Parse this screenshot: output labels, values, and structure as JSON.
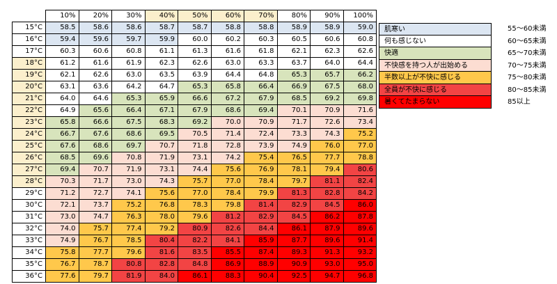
{
  "colors": {
    "background": "#ffffff",
    "grid_line": "#000000",
    "header_plain": "#ffffff",
    "header_highlight": "#fbefcc"
  },
  "chart_data": {
    "type": "table",
    "title": "",
    "column_labels": [
      "10%",
      "20%",
      "30%",
      "40%",
      "50%",
      "60%",
      "70%",
      "80%",
      "90%",
      "100%"
    ],
    "highlighted_columns": [
      "40%",
      "50%",
      "60%",
      "70%"
    ],
    "row_labels": [
      "15°C",
      "16°C",
      "17°C",
      "18°C",
      "19°C",
      "20°C",
      "21°C",
      "22°C",
      "23°C",
      "24°C",
      "25°C",
      "26°C",
      "27°C",
      "28°C",
      "29°C",
      "30°C",
      "31°C",
      "32°C",
      "33°C",
      "34°C",
      "35°C",
      "36°C"
    ],
    "highlighted_rows": [
      "18°C",
      "19°C",
      "20°C",
      "21°C",
      "22°C",
      "23°C",
      "24°C",
      "25°C",
      "26°C",
      "27°C",
      "28°C"
    ],
    "cells": [
      [
        [
          "58.5",
          0
        ],
        [
          "58.6",
          0
        ],
        [
          "58.6",
          0
        ],
        [
          "58.7",
          0
        ],
        [
          "58.7",
          0
        ],
        [
          "58.8",
          0
        ],
        [
          "58.8",
          0
        ],
        [
          "58.9",
          0
        ],
        [
          "58.9",
          0
        ],
        [
          "59.0",
          0
        ]
      ],
      [
        [
          "59.4",
          0
        ],
        [
          "59.6",
          0
        ],
        [
          "59.7",
          0
        ],
        [
          "59.9",
          0
        ],
        [
          "60.0",
          1
        ],
        [
          "60.2",
          1
        ],
        [
          "60.3",
          1
        ],
        [
          "60.5",
          1
        ],
        [
          "60.6",
          1
        ],
        [
          "60.8",
          1
        ]
      ],
      [
        [
          "60.3",
          1
        ],
        [
          "60.6",
          1
        ],
        [
          "60.8",
          1
        ],
        [
          "61.1",
          1
        ],
        [
          "61.3",
          1
        ],
        [
          "61.6",
          1
        ],
        [
          "61.8",
          1
        ],
        [
          "62.1",
          1
        ],
        [
          "62.3",
          1
        ],
        [
          "62.6",
          1
        ]
      ],
      [
        [
          "61.2",
          1
        ],
        [
          "61.6",
          1
        ],
        [
          "61.9",
          1
        ],
        [
          "62.3",
          1
        ],
        [
          "62.6",
          1
        ],
        [
          "63.0",
          1
        ],
        [
          "63.3",
          1
        ],
        [
          "63.7",
          1
        ],
        [
          "64.0",
          1
        ],
        [
          "64.4",
          1
        ]
      ],
      [
        [
          "62.1",
          1
        ],
        [
          "62.6",
          1
        ],
        [
          "63.0",
          1
        ],
        [
          "63.5",
          1
        ],
        [
          "63.9",
          1
        ],
        [
          "64.4",
          1
        ],
        [
          "64.8",
          1
        ],
        [
          "65.3",
          2
        ],
        [
          "65.7",
          2
        ],
        [
          "66.2",
          2
        ]
      ],
      [
        [
          "63.1",
          1
        ],
        [
          "63.6",
          1
        ],
        [
          "64.2",
          1
        ],
        [
          "64.7",
          1
        ],
        [
          "65.3",
          2
        ],
        [
          "65.8",
          2
        ],
        [
          "66.4",
          2
        ],
        [
          "66.9",
          2
        ],
        [
          "67.5",
          2
        ],
        [
          "68.0",
          2
        ]
      ],
      [
        [
          "64.0",
          1
        ],
        [
          "64.6",
          1
        ],
        [
          "65.3",
          2
        ],
        [
          "65.9",
          2
        ],
        [
          "66.6",
          2
        ],
        [
          "67.2",
          2
        ],
        [
          "67.9",
          2
        ],
        [
          "68.5",
          2
        ],
        [
          "69.2",
          2
        ],
        [
          "69.8",
          2
        ]
      ],
      [
        [
          "64.9",
          1
        ],
        [
          "65.6",
          2
        ],
        [
          "66.4",
          2
        ],
        [
          "67.1",
          2
        ],
        [
          "67.9",
          2
        ],
        [
          "68.6",
          2
        ],
        [
          "69.4",
          2
        ],
        [
          "70.1",
          3
        ],
        [
          "70.9",
          3
        ],
        [
          "71.6",
          3
        ]
      ],
      [
        [
          "65.8",
          2
        ],
        [
          "66.6",
          2
        ],
        [
          "67.5",
          2
        ],
        [
          "68.3",
          2
        ],
        [
          "69.2",
          2
        ],
        [
          "70.0",
          3
        ],
        [
          "70.9",
          3
        ],
        [
          "71.7",
          3
        ],
        [
          "72.6",
          3
        ],
        [
          "73.4",
          3
        ]
      ],
      [
        [
          "66.7",
          2
        ],
        [
          "67.6",
          2
        ],
        [
          "68.6",
          2
        ],
        [
          "69.5",
          2
        ],
        [
          "70.5",
          3
        ],
        [
          "71.4",
          3
        ],
        [
          "72.4",
          3
        ],
        [
          "73.3",
          3
        ],
        [
          "74.3",
          3
        ],
        [
          "75.2",
          4
        ]
      ],
      [
        [
          "67.6",
          2
        ],
        [
          "68.6",
          2
        ],
        [
          "69.7",
          2
        ],
        [
          "70.7",
          3
        ],
        [
          "71.8",
          3
        ],
        [
          "72.8",
          3
        ],
        [
          "73.9",
          3
        ],
        [
          "74.9",
          3
        ],
        [
          "76.0",
          4
        ],
        [
          "77.0",
          4
        ]
      ],
      [
        [
          "68.5",
          2
        ],
        [
          "69.6",
          2
        ],
        [
          "70.8",
          3
        ],
        [
          "71.9",
          3
        ],
        [
          "73.1",
          3
        ],
        [
          "74.2",
          3
        ],
        [
          "75.4",
          4
        ],
        [
          "76.5",
          4
        ],
        [
          "77.7",
          4
        ],
        [
          "78.8",
          4
        ]
      ],
      [
        [
          "69.4",
          2
        ],
        [
          "70.7",
          3
        ],
        [
          "71.9",
          3
        ],
        [
          "73.1",
          3
        ],
        [
          "74.4",
          3
        ],
        [
          "75.6",
          4
        ],
        [
          "76.9",
          4
        ],
        [
          "78.1",
          4
        ],
        [
          "79.4",
          4
        ],
        [
          "80.6",
          5
        ]
      ],
      [
        [
          "70.3",
          3
        ],
        [
          "71.7",
          3
        ],
        [
          "73.0",
          3
        ],
        [
          "74.3",
          3
        ],
        [
          "75.7",
          4
        ],
        [
          "77.0",
          4
        ],
        [
          "78.4",
          4
        ],
        [
          "79.7",
          4
        ],
        [
          "81.1",
          5
        ],
        [
          "82.4",
          5
        ]
      ],
      [
        [
          "71.2",
          3
        ],
        [
          "72.7",
          3
        ],
        [
          "74.1",
          3
        ],
        [
          "75.6",
          4
        ],
        [
          "77.0",
          4
        ],
        [
          "78.4",
          4
        ],
        [
          "79.9",
          4
        ],
        [
          "81.3",
          5
        ],
        [
          "82.8",
          5
        ],
        [
          "84.2",
          5
        ]
      ],
      [
        [
          "72.1",
          3
        ],
        [
          "73.7",
          3
        ],
        [
          "75.2",
          4
        ],
        [
          "76.8",
          4
        ],
        [
          "78.3",
          4
        ],
        [
          "79.8",
          4
        ],
        [
          "81.4",
          5
        ],
        [
          "82.9",
          5
        ],
        [
          "84.5",
          5
        ],
        [
          "86.0",
          6
        ]
      ],
      [
        [
          "73.0",
          3
        ],
        [
          "74.7",
          3
        ],
        [
          "76.3",
          4
        ],
        [
          "78.0",
          4
        ],
        [
          "79.6",
          4
        ],
        [
          "81.2",
          5
        ],
        [
          "82.9",
          5
        ],
        [
          "84.5",
          5
        ],
        [
          "86.2",
          6
        ],
        [
          "87.8",
          6
        ]
      ],
      [
        [
          "74.0",
          3
        ],
        [
          "75.7",
          4
        ],
        [
          "77.4",
          4
        ],
        [
          "79.2",
          4
        ],
        [
          "80.9",
          5
        ],
        [
          "82.6",
          5
        ],
        [
          "84.4",
          5
        ],
        [
          "86.1",
          6
        ],
        [
          "87.9",
          6
        ],
        [
          "89.6",
          6
        ]
      ],
      [
        [
          "74.9",
          3
        ],
        [
          "76.7",
          4
        ],
        [
          "78.5",
          4
        ],
        [
          "80.4",
          5
        ],
        [
          "82.2",
          5
        ],
        [
          "84.1",
          5
        ],
        [
          "85.9",
          6
        ],
        [
          "87.7",
          6
        ],
        [
          "89.6",
          6
        ],
        [
          "91.4",
          6
        ]
      ],
      [
        [
          "75.8",
          4
        ],
        [
          "77.7",
          4
        ],
        [
          "79.6",
          4
        ],
        [
          "81.6",
          5
        ],
        [
          "83.5",
          5
        ],
        [
          "85.5",
          6
        ],
        [
          "87.4",
          6
        ],
        [
          "89.3",
          6
        ],
        [
          "91.3",
          6
        ],
        [
          "93.2",
          6
        ]
      ],
      [
        [
          "76.7",
          4
        ],
        [
          "78.7",
          4
        ],
        [
          "80.8",
          5
        ],
        [
          "82.8",
          5
        ],
        [
          "84.8",
          5
        ],
        [
          "86.9",
          6
        ],
        [
          "88.9",
          6
        ],
        [
          "90.9",
          6
        ],
        [
          "93.0",
          6
        ],
        [
          "95.0",
          6
        ]
      ],
      [
        [
          "77.6",
          4
        ],
        [
          "79.7",
          4
        ],
        [
          "81.9",
          5
        ],
        [
          "84.0",
          5
        ],
        [
          "86.1",
          6
        ],
        [
          "88.3",
          6
        ],
        [
          "90.4",
          6
        ],
        [
          "92.5",
          6
        ],
        [
          "94.7",
          6
        ],
        [
          "96.8",
          6
        ]
      ]
    ],
    "legend": [
      {
        "label": "肌寒い",
        "range": "55～60未満",
        "color": "#dce6f2"
      },
      {
        "label": "何も感じない",
        "range": "60～65未満",
        "color": "#ffffff"
      },
      {
        "label": "快適",
        "range": "65～70未満",
        "color": "#d8e4bc"
      },
      {
        "label": "不快感を持つ人が出始める",
        "range": "70～75未満",
        "color": "#fcddd2"
      },
      {
        "label": "半数以上が不快に感じる",
        "range": "75～80未満",
        "color": "#ffc84b"
      },
      {
        "label": "全員が不快に感じる",
        "range": "80～85未満",
        "color": "#f24444"
      },
      {
        "label": "暑くてたまらない",
        "range": "85以上",
        "color": "#ff0000"
      }
    ]
  }
}
